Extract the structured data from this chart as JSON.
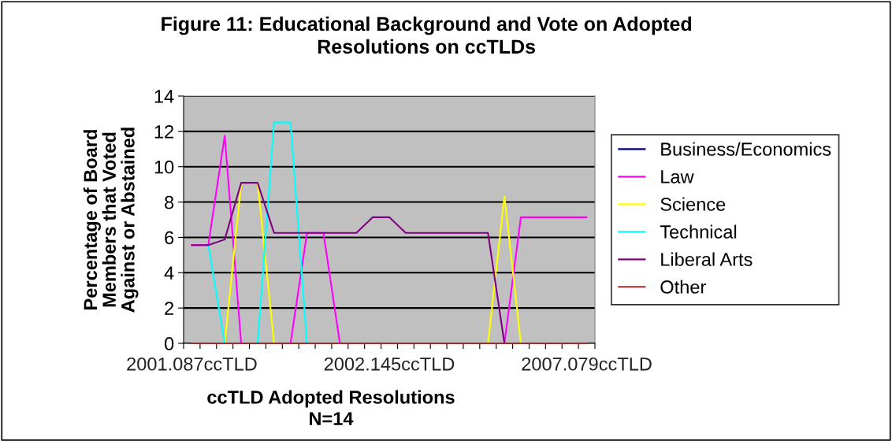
{
  "chart_data": {
    "type": "line",
    "title": "Figure 11: Educational Background and Vote on Adopted\nResolutions on ccTLDs",
    "xlabel": "ccTLD Adopted Resolutions\nN=14",
    "ylabel": "Percentage of Board\nMembers that Voted\nAgainst or Abstained",
    "categories": [
      "2001.087ccTLD",
      null,
      null,
      null,
      null,
      null,
      null,
      null,
      null,
      null,
      null,
      null,
      "2002.145ccTLD",
      null,
      null,
      null,
      null,
      null,
      null,
      null,
      null,
      null,
      null,
      null,
      "2007.079ccTLD"
    ],
    "series": [
      {
        "name": "Business/Economics",
        "color": "#000080",
        "values": [
          null,
          null,
          null,
          null,
          null,
          null,
          null,
          null,
          null,
          null,
          null,
          null,
          null,
          null,
          null,
          null,
          null,
          null,
          null,
          null,
          null,
          null,
          null,
          null,
          null
        ]
      },
      {
        "name": "Law",
        "color": "#ff00ff",
        "values": [
          5.56,
          5.56,
          11.76,
          0,
          0,
          0,
          0,
          6.25,
          6.25,
          0,
          0,
          0,
          0,
          0,
          0,
          0,
          0,
          0,
          0,
          0,
          7.14,
          7.14,
          7.14,
          7.14,
          7.14
        ]
      },
      {
        "name": "Science",
        "color": "#ffff00",
        "values": [
          null,
          null,
          0,
          9.09,
          9.09,
          0,
          null,
          null,
          null,
          null,
          null,
          null,
          null,
          null,
          null,
          null,
          null,
          null,
          0,
          8.33,
          0,
          null,
          null,
          null,
          null
        ]
      },
      {
        "name": "Technical",
        "color": "#00ffff",
        "values": [
          null,
          5.56,
          0,
          null,
          0,
          12.5,
          12.5,
          0,
          null,
          null,
          null,
          null,
          null,
          null,
          null,
          null,
          null,
          null,
          null,
          null,
          null,
          null,
          null,
          null,
          null
        ]
      },
      {
        "name": "Liberal Arts",
        "color": "#800080",
        "values": [
          5.56,
          5.56,
          5.88,
          9.09,
          9.09,
          6.25,
          6.25,
          6.25,
          6.25,
          6.25,
          6.25,
          7.14,
          7.14,
          6.25,
          6.25,
          6.25,
          6.25,
          6.25,
          6.25,
          0,
          0,
          null,
          null,
          null,
          null
        ]
      },
      {
        "name": "Other",
        "color": "#a52a2a",
        "values": [
          0,
          0,
          0,
          0,
          0,
          0,
          0,
          0,
          0,
          0,
          0,
          0,
          0,
          0,
          0,
          0,
          0,
          0,
          0,
          0,
          0,
          0,
          0,
          0,
          0
        ]
      }
    ],
    "ylim": [
      0,
      14
    ],
    "yticks": [
      0,
      2,
      4,
      6,
      8,
      10,
      12,
      14
    ],
    "grid": "y",
    "legend": "right",
    "marker": "none",
    "line_style": "solid"
  }
}
